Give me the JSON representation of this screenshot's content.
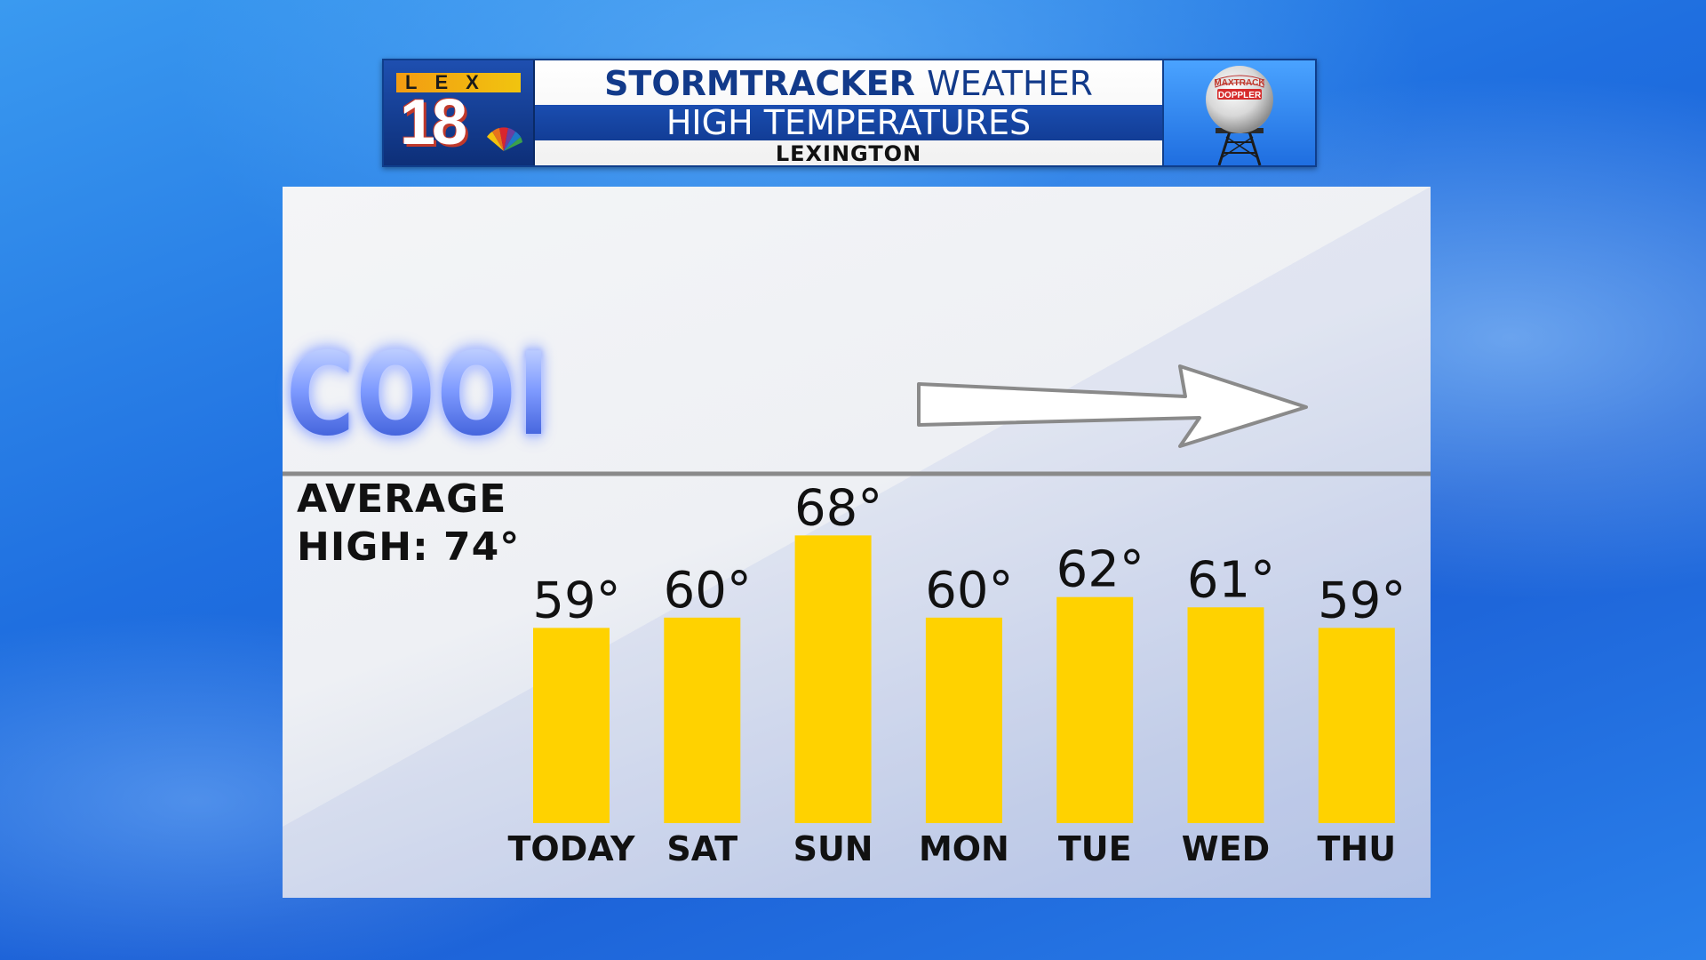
{
  "header": {
    "station_logo_letters": "LEX",
    "station_logo_number": "18",
    "title_bold": "STORMTRACKER",
    "title_light": "WEATHER",
    "subtitle": "HIGH TEMPERATURES",
    "location": "LEXINGTON",
    "radar_logo_text_top": "MAXTRACK",
    "radar_logo_text_bottom": "DOPPLER"
  },
  "colors": {
    "bar": "#ffd200",
    "average_line": "#8a8a8a",
    "header_blue": "#123a8a"
  },
  "annotation": {
    "trend_word": "COOL",
    "arrow_icon": "right-arrow-icon"
  },
  "average": {
    "line1": "AVERAGE",
    "line2": "HIGH: 74°"
  },
  "chart_data": {
    "type": "bar",
    "categories": [
      "TODAY",
      "SAT",
      "SUN",
      "MON",
      "TUE",
      "WED",
      "THU"
    ],
    "values": [
      59,
      60,
      68,
      60,
      62,
      61,
      59
    ],
    "value_labels": [
      "59°",
      "60°",
      "68°",
      "60°",
      "62°",
      "61°",
      "59°"
    ],
    "title": "HIGH TEMPERATURES",
    "reference_line": {
      "label": "AVERAGE HIGH: 74°",
      "value": 74
    },
    "xlabel": "",
    "ylabel": "",
    "ylim": [
      40,
      74
    ],
    "grid": false,
    "legend": "none"
  }
}
